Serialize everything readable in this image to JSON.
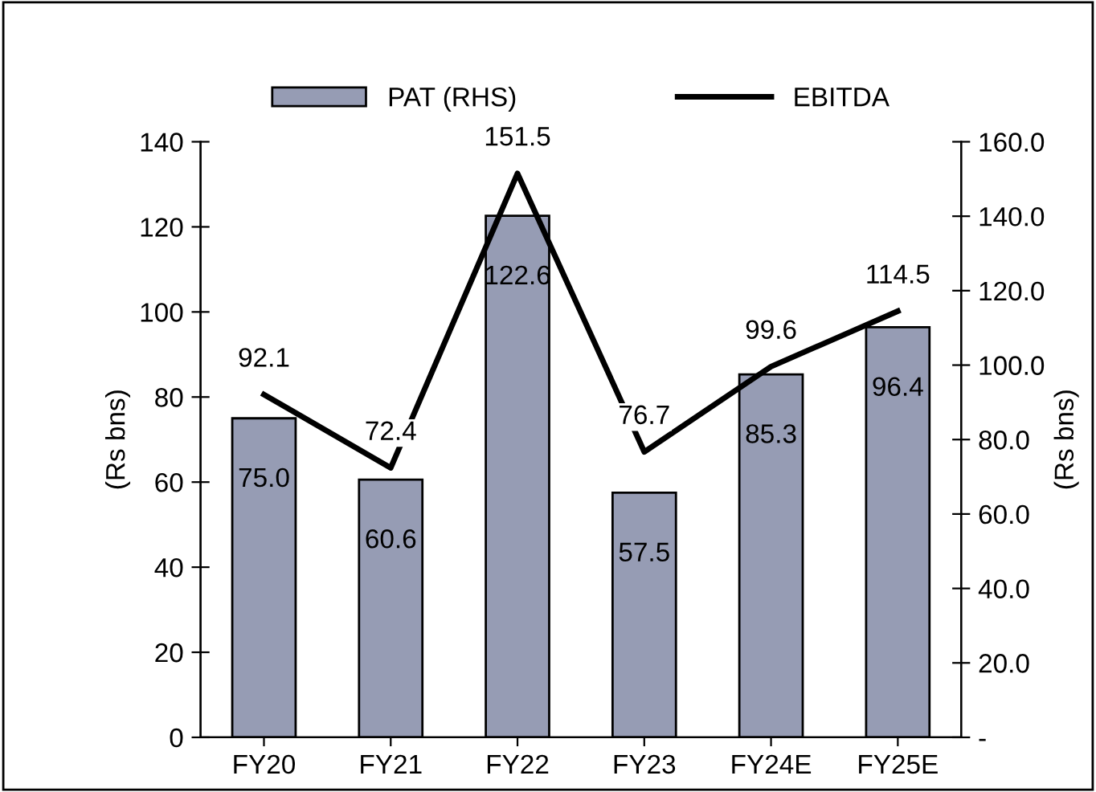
{
  "chart_data": {
    "type": "bar",
    "categories": [
      "FY20",
      "FY21",
      "FY22",
      "FY23",
      "FY24E",
      "FY25E"
    ],
    "series": [
      {
        "name": "PAT (RHS)",
        "color": "#969cb4",
        "values": [
          75.0,
          60.6,
          122.6,
          57.5,
          85.3,
          96.4
        ],
        "value_labels": [
          "75.0",
          "60.6",
          "122.6",
          "57.5",
          "85.3",
          "96.4"
        ]
      },
      {
        "name": "EBITDA",
        "type": "line",
        "axis": "y2",
        "color": "#000000",
        "values": [
          92.1,
          72.4,
          151.5,
          76.7,
          99.6,
          114.5
        ],
        "value_labels": [
          "92.1",
          "72.4",
          "151.5",
          "76.7",
          "99.6",
          "114.5"
        ]
      }
    ],
    "ylabel": "(Rs bns)",
    "y2label": "(Rs bns)",
    "ylim": [
      0,
      140
    ],
    "yticks": [
      0,
      20,
      40,
      60,
      80,
      100,
      120,
      140
    ],
    "y2lim": [
      0,
      160
    ],
    "y2ticks": [
      {
        "value": 0,
        "label": "-"
      },
      {
        "value": 20,
        "label": "20.0"
      },
      {
        "value": 40,
        "label": "40.0"
      },
      {
        "value": 60,
        "label": "60.0"
      },
      {
        "value": 80,
        "label": "80.0"
      },
      {
        "value": 100,
        "label": "100.0"
      },
      {
        "value": 120,
        "label": "120.0"
      },
      {
        "value": 140,
        "label": "140.0"
      },
      {
        "value": 160,
        "label": "160.0"
      }
    ],
    "legend": "top",
    "grid": false,
    "marker": "none",
    "line_style": "solid"
  }
}
